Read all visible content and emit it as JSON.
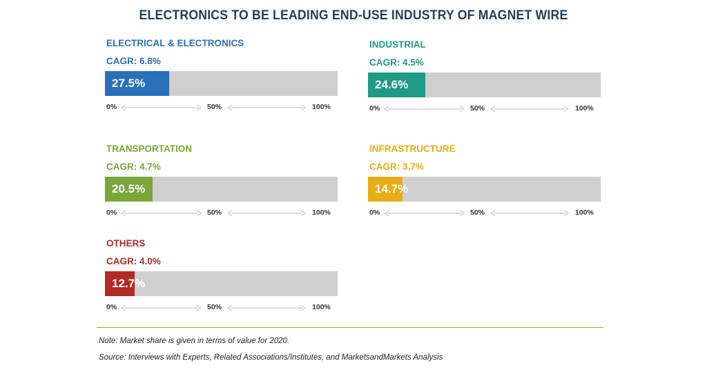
{
  "header": {
    "title": "ELECTRONICS TO BE LEADING END-USE INDUSTRY OF MAGNET WIRE"
  },
  "chart_data": {
    "type": "bar",
    "unit": "%",
    "xlim": [
      0,
      100
    ],
    "scale_labels": [
      "0%",
      "50%",
      "100%"
    ],
    "panels": [
      {
        "name": "ELECTRICAL & ELECTRONICS",
        "cagr_label": "CAGR: 6.8%",
        "value": 27.5,
        "value_label": "27.5%",
        "color": "#2a6fb8"
      },
      {
        "name": "INDUSTRIAL",
        "cagr_label": "CAGR: 4.5%",
        "value": 24.6,
        "value_label": "24.6%",
        "color": "#1f9a86"
      },
      {
        "name": "TRANSPORTATION",
        "cagr_label": "CAGR: 4.7%",
        "value": 20.5,
        "value_label": "20.5%",
        "color": "#7aa63a"
      },
      {
        "name": "INFRASTRUCTURE",
        "cagr_label": "CAGR: 3.7%",
        "value": 14.7,
        "value_label": "14.7%",
        "color": "#e7ad14"
      },
      {
        "name": "OTHERS",
        "cagr_label": "CAGR: 4.0%",
        "value": 12.7,
        "value_label": "12.7%",
        "color": "#b22a24"
      }
    ]
  },
  "footer": {
    "note": "Note: Market share is given in terms of value for 2020.",
    "source": "Source: Interviews with Experts, Related Associations/Institutes, and MarketsandMarkets Analysis"
  },
  "colors": {
    "title": "#1f3e5a",
    "track": "#cfcfcf",
    "rule": "#b49a3a",
    "arrow": "#c8c8c8"
  }
}
